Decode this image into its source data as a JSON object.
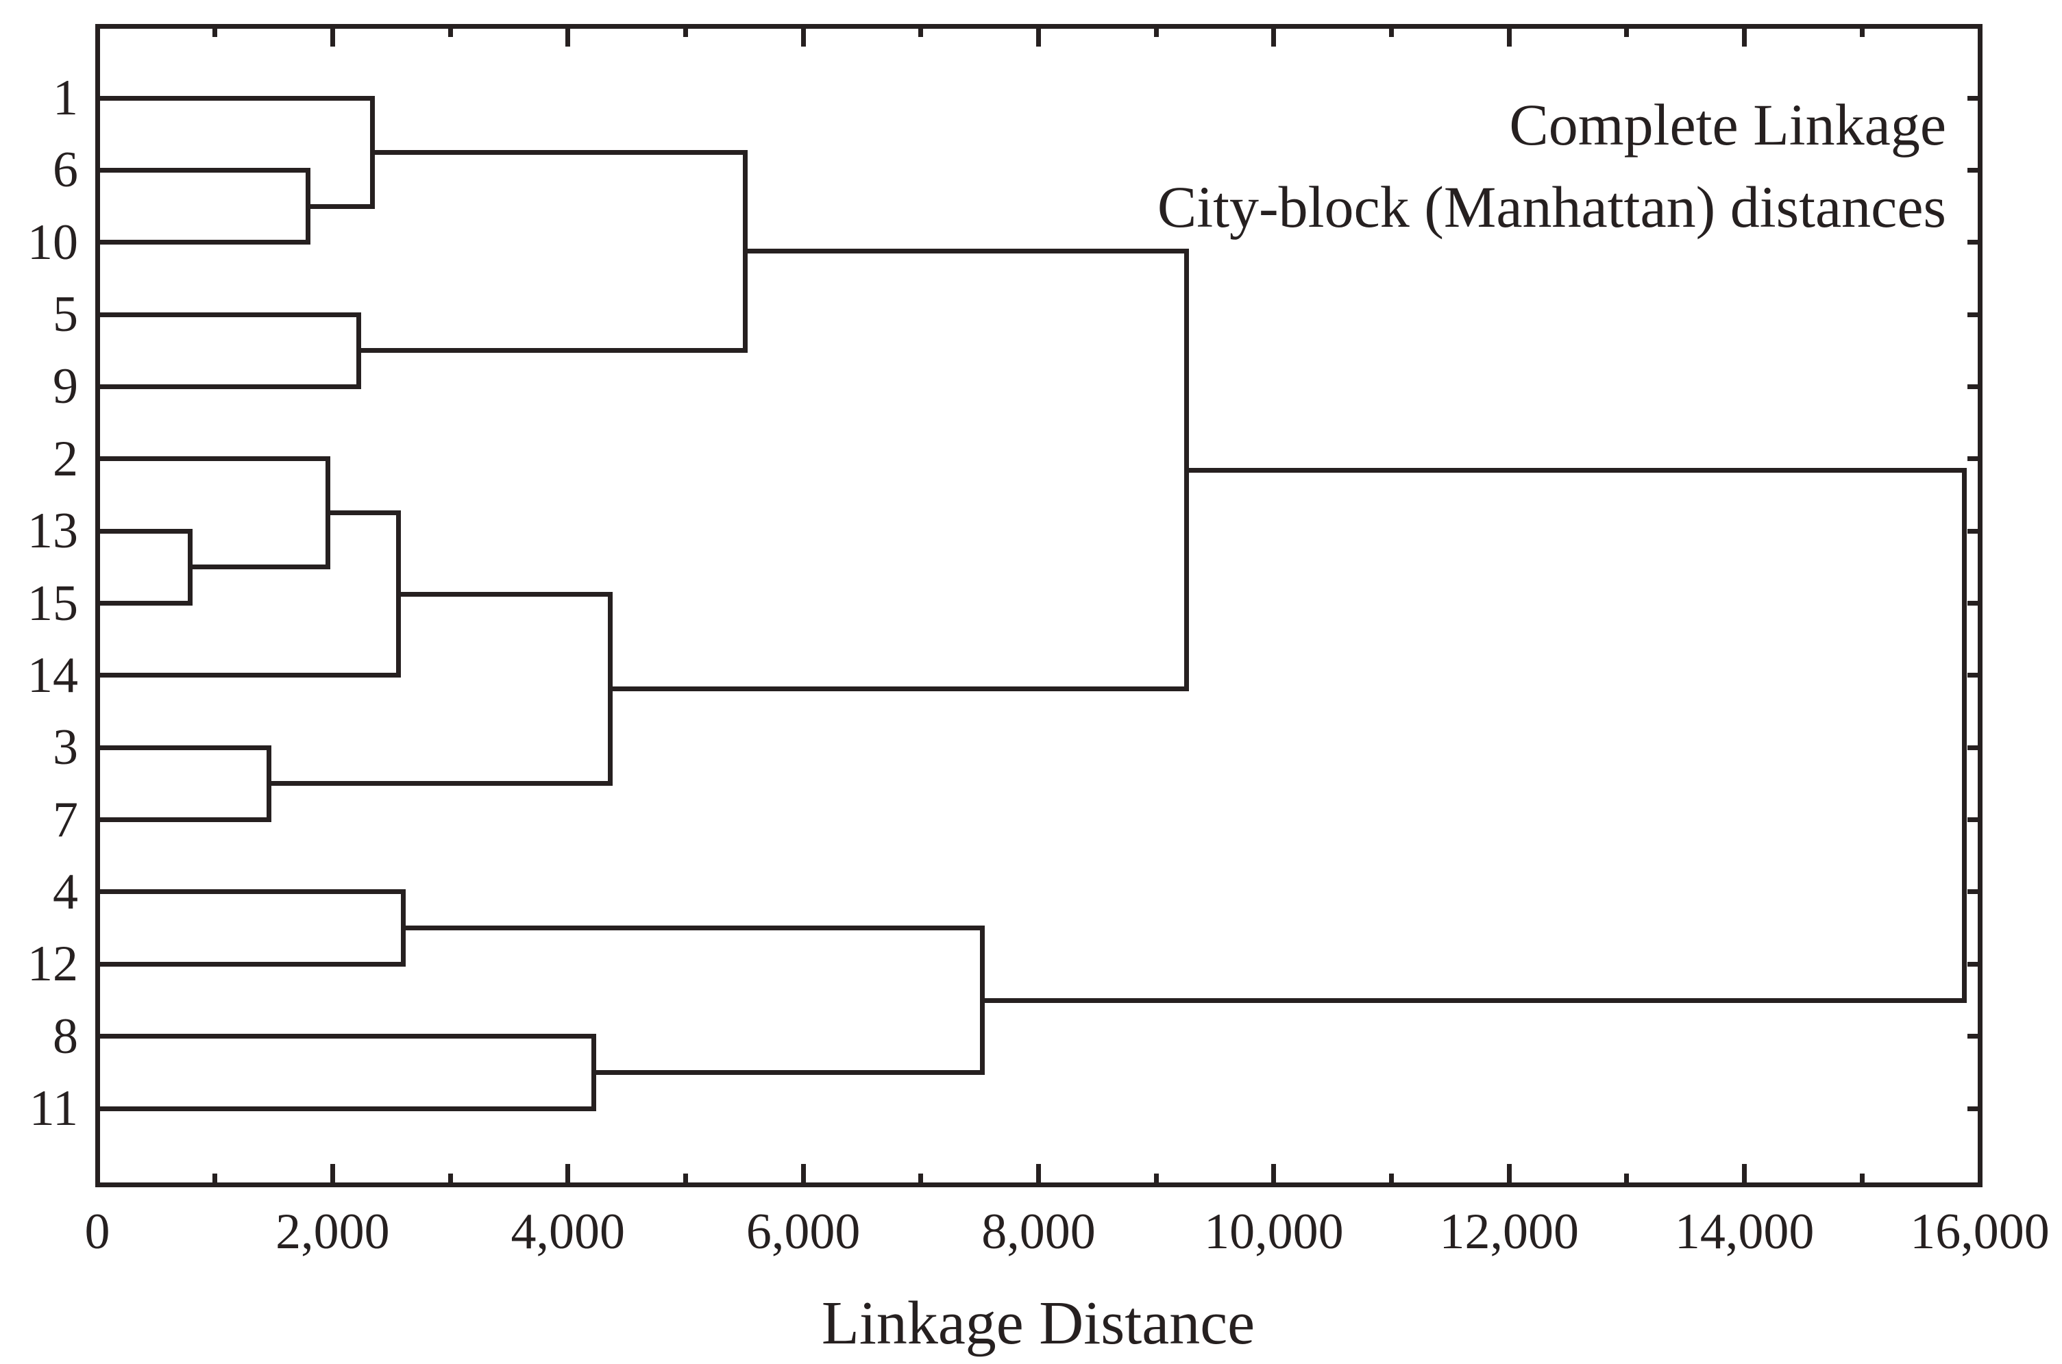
{
  "title": {
    "line1": "Complete Linkage",
    "line2": "City-block (Manhattan) distances"
  },
  "axis": {
    "label": "Linkage Distance",
    "min": 0,
    "max": 16000,
    "major_tick_step": 2000,
    "minor_tick_step": 1000,
    "tick_labels": [
      "0",
      "2,000",
      "4,000",
      "6,000",
      "8,000",
      "10,000",
      "12,000",
      "14,000",
      "16,000"
    ]
  },
  "chart_data": {
    "type": "dendrogram",
    "orientation": "horizontal",
    "linkage_method": "Complete Linkage",
    "distance_metric": "City-block (Manhattan) distances",
    "xlabel": "Linkage Distance",
    "xlim": [
      0,
      16000
    ],
    "grid": false,
    "leaves": [
      "1",
      "6",
      "10",
      "5",
      "9",
      "2",
      "13",
      "15",
      "14",
      "3",
      "7",
      "4",
      "12",
      "8",
      "11"
    ],
    "merges": [
      {
        "id": "A",
        "children": [
          "6",
          "10"
        ],
        "distance": 1790
      },
      {
        "id": "B",
        "children": [
          "1",
          "A"
        ],
        "distance": 2340
      },
      {
        "id": "C",
        "children": [
          "5",
          "9"
        ],
        "distance": 2220
      },
      {
        "id": "D",
        "children": [
          "B",
          "C"
        ],
        "distance": 5510
      },
      {
        "id": "E",
        "children": [
          "13",
          "15"
        ],
        "distance": 790
      },
      {
        "id": "F",
        "children": [
          "2",
          "E"
        ],
        "distance": 1960
      },
      {
        "id": "G",
        "children": [
          "F",
          "14"
        ],
        "distance": 2560
      },
      {
        "id": "H",
        "children": [
          "3",
          "7"
        ],
        "distance": 1460
      },
      {
        "id": "I",
        "children": [
          "G",
          "H"
        ],
        "distance": 4360
      },
      {
        "id": "J",
        "children": [
          "D",
          "I"
        ],
        "distance": 9260
      },
      {
        "id": "K",
        "children": [
          "4",
          "12"
        ],
        "distance": 2600
      },
      {
        "id": "L",
        "children": [
          "8",
          "11"
        ],
        "distance": 4220
      },
      {
        "id": "M",
        "children": [
          "K",
          "L"
        ],
        "distance": 7520
      },
      {
        "id": "N",
        "children": [
          "J",
          "M"
        ],
        "distance": 15870
      }
    ]
  },
  "colors": {
    "line": "#262020",
    "background": "#ffffff"
  }
}
